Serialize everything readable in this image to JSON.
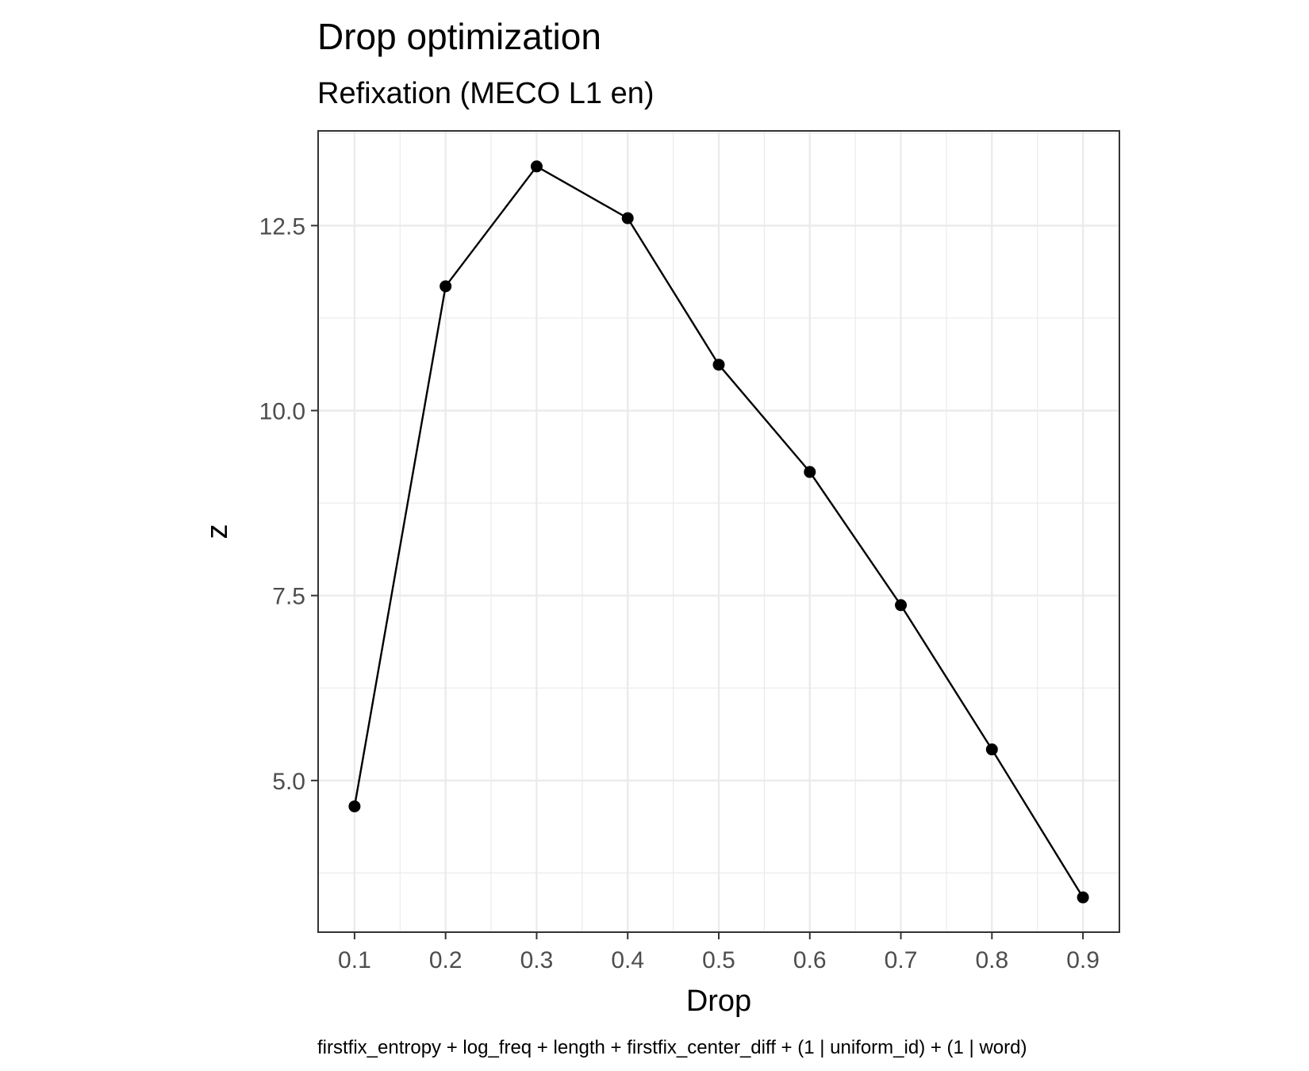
{
  "chart_data": {
    "type": "line",
    "title": "Drop optimization",
    "subtitle": "Refixation (MECO L1 en)",
    "xlabel": "Drop",
    "ylabel": "z",
    "caption": "firstfix_entropy + log_freq + length + firstfix_center_diff + (1 | uniform_id) + (1 | word)",
    "x": [
      0.1,
      0.2,
      0.3,
      0.4,
      0.5,
      0.6,
      0.7,
      0.8,
      0.9
    ],
    "y": [
      4.65,
      11.68,
      13.3,
      12.6,
      10.62,
      9.17,
      7.37,
      5.42,
      3.42
    ],
    "xticks": [
      0.1,
      0.2,
      0.3,
      0.4,
      0.5,
      0.6,
      0.7,
      0.8,
      0.9
    ],
    "xtick_labels": [
      "0.1",
      "0.2",
      "0.3",
      "0.4",
      "0.5",
      "0.6",
      "0.7",
      "0.8",
      "0.9"
    ],
    "yticks": [
      5.0,
      7.5,
      10.0,
      12.5
    ],
    "ytick_labels": [
      "5.0",
      "7.5",
      "10.0",
      "12.5"
    ],
    "xlim": [
      0.06,
      0.94
    ],
    "ylim": [
      2.95,
      13.78
    ],
    "grid": true,
    "line_color": "#000000",
    "grid_color": "#ebebeb",
    "panel_border_color": "#333333"
  }
}
